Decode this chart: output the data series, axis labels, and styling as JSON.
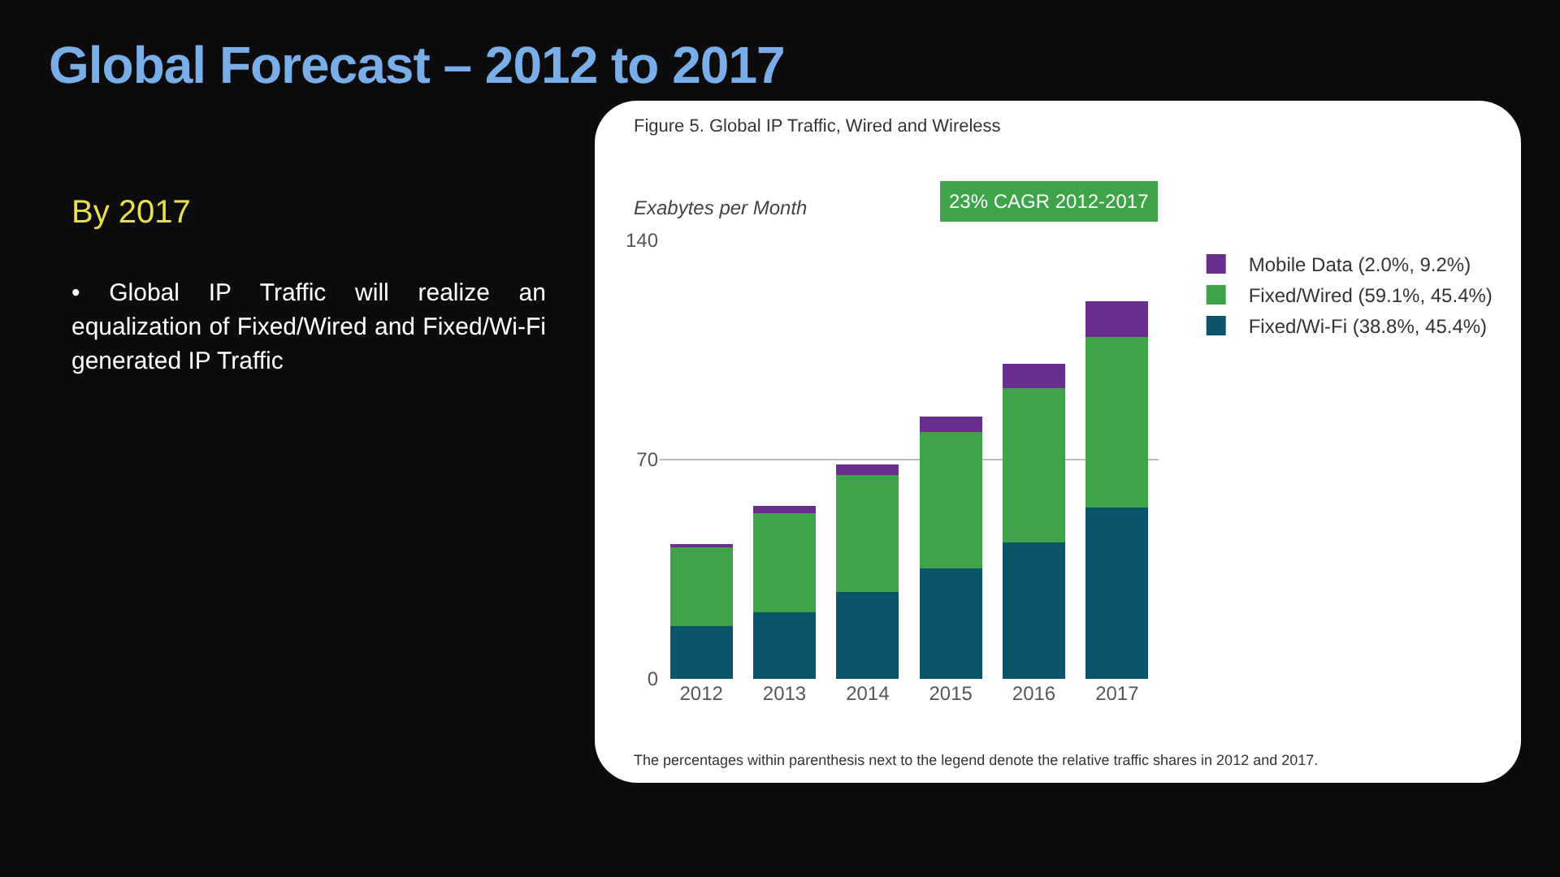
{
  "chart_data": {
    "type": "bar",
    "title": "Global Forecast – 2012 to 2017",
    "subtitle": "Figure 5. Global IP Traffic, Wired and Wireless",
    "ylabel": "Exabytes per Month",
    "categories": [
      "2012",
      "2013",
      "2014",
      "2015",
      "2016",
      "2017"
    ],
    "stacked": true,
    "series": [
      {
        "name": "Fixed/Wi-Fi (38.8%, 45.4%)",
        "color": "#0a5569",
        "values": [
          16.8,
          21.3,
          27.8,
          35.3,
          43.6,
          54.6
        ]
      },
      {
        "name": "Fixed/Wired (59.1%, 45.4%)",
        "color": "#3fa34a",
        "values": [
          25.3,
          31.7,
          37.3,
          43.4,
          49.3,
          54.6
        ]
      },
      {
        "name": "Mobile Data (2.0%, 9.2%)",
        "color": "#6a2f8e",
        "values": [
          0.9,
          2.2,
          3.3,
          5.0,
          7.6,
          11.4
        ]
      }
    ],
    "ylim": [
      0,
      140
    ],
    "yticks": [
      0,
      70,
      140
    ],
    "grid": "y",
    "legend": "top right",
    "annotations": [
      "By 2017",
      "• Global IP Traffic will realize an equalization of Fixed/Wired and Fixed/Wi-Fi generated IP Traffic",
      "23% CAGR 2012-2017",
      "The percentages within parenthesis next to the legend denote the relative traffic shares in 2012 and 2017."
    ]
  }
}
